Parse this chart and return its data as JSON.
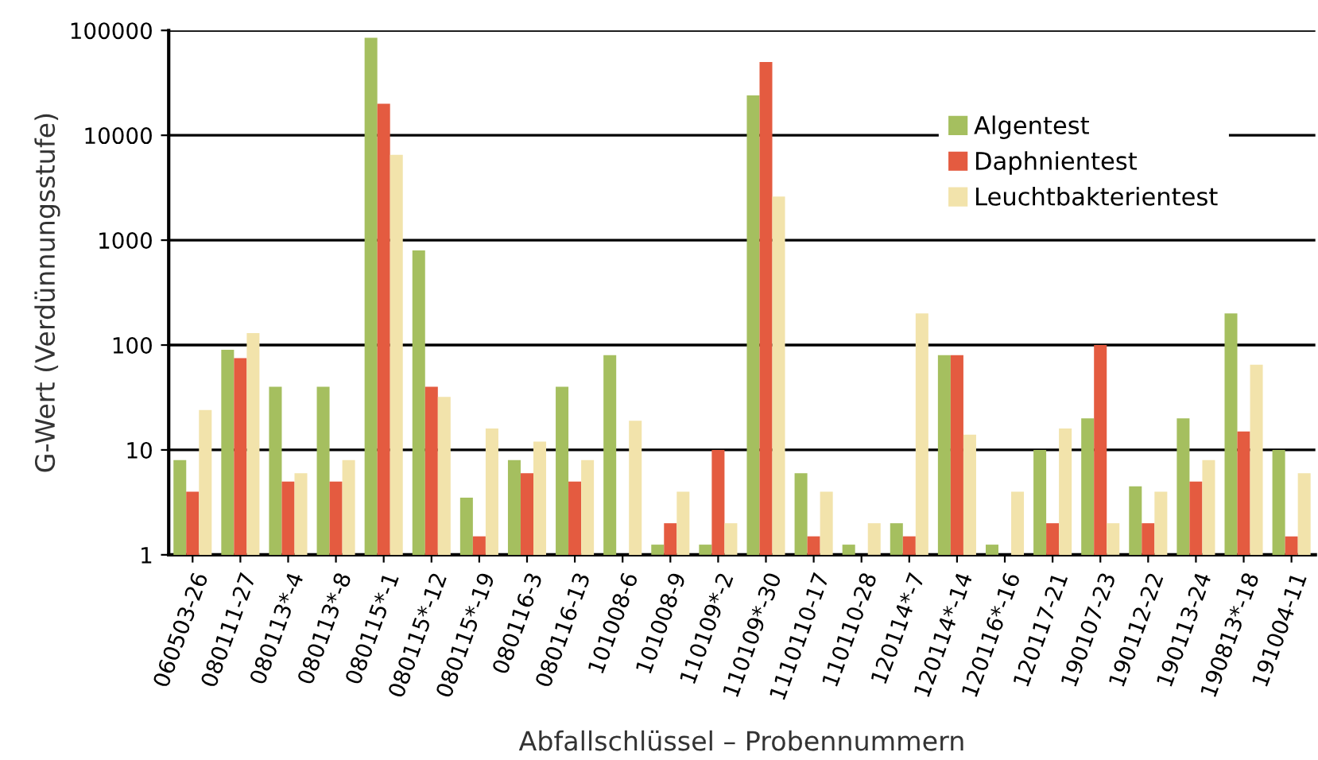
{
  "chart_data": {
    "type": "bar",
    "xlabel": "Abfallschlüssel – Probennummern",
    "ylabel": "G-Wert (Verdünnungsstufe)",
    "categories": [
      "060503-26",
      "080111-27",
      "080113*-4",
      "080113*-8",
      "080115*-1",
      "080115*-12",
      "080115*-19",
      "080116-3",
      "080116-13",
      "101008-6",
      "101008-9",
      "110109*-2",
      "110109*-30",
      "1110110-17",
      "110110-28",
      "120114*-7",
      "120114*-14",
      "120116*-16",
      "120117-21",
      "190107-23",
      "190112-22",
      "190113-24",
      "190813*-18",
      "191004-11"
    ],
    "series": [
      {
        "name": "Algentest",
        "color": "#a5bf5f",
        "values": [
          8,
          90,
          40,
          40,
          85000,
          800,
          3.5,
          8,
          40,
          80,
          1.25,
          1.25,
          24000,
          6,
          1.25,
          2,
          80,
          1.25,
          10,
          20,
          4.5,
          20,
          200,
          10
        ]
      },
      {
        "name": "Daphnientest",
        "color": "#e45b40",
        "values": [
          4,
          75,
          5,
          5,
          20000,
          40,
          1.5,
          6,
          5,
          null,
          2,
          10,
          50000,
          1.5,
          null,
          1.5,
          80,
          null,
          2,
          100,
          2,
          5,
          15,
          1.5
        ]
      },
      {
        "name": "Leuchtbakterientest",
        "color": "#f2e3ab",
        "values": [
          24,
          130,
          6,
          8,
          6500,
          32,
          16,
          12,
          8,
          19,
          4,
          2,
          2600,
          4,
          2,
          200,
          14,
          4,
          16,
          2,
          4,
          8,
          65,
          6
        ]
      }
    ],
    "log": "y",
    "ylim": [
      1,
      100000
    ],
    "yticks": [
      1,
      10,
      100,
      1000,
      10000,
      100000
    ],
    "grid": "y",
    "legend": "top right"
  }
}
